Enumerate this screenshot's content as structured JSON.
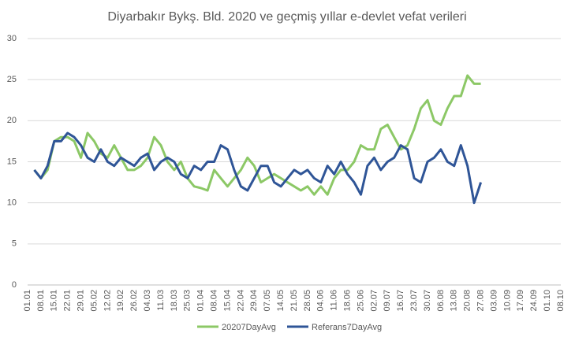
{
  "chart_data": {
    "type": "line",
    "title": "Diyarbakır Bykş. Bld. 2020 ve geçmiş yıllar e-devlet vefat verileri",
    "categories": [
      "01.01",
      null,
      "08.01",
      null,
      "15.01",
      null,
      "22.01",
      null,
      "29.01",
      null,
      "05.02",
      null,
      "12.02",
      null,
      "19.02",
      null,
      "26.02",
      null,
      "04.03",
      null,
      "11.03",
      null,
      "18.03",
      null,
      "25.03",
      null,
      "01.04",
      null,
      "08.04",
      null,
      "15.04",
      null,
      "22.04",
      null,
      "29.04",
      null,
      "07.05",
      null,
      "14.05",
      null,
      "21.05",
      null,
      "28.05",
      null,
      "04.06",
      null,
      "11.06",
      null,
      "18.06",
      null,
      "25.06",
      null,
      "02.07",
      null,
      "09.07",
      null,
      "16.07",
      null,
      "23.07",
      null,
      "30.07",
      null,
      "06.08",
      null,
      "13.08",
      null,
      "20.08",
      null,
      "27.08",
      null,
      "03.09",
      null,
      "10.09",
      null,
      "17.09",
      null,
      "24.09",
      null,
      "01.10",
      null,
      "08.10"
    ],
    "series": [
      {
        "name": "20207DayAvg",
        "color": "#8cc866",
        "values": [
          null,
          14,
          13,
          14,
          17.5,
          18,
          18,
          17.5,
          15.5,
          18.5,
          17.5,
          16,
          15.5,
          17,
          15.5,
          14,
          14,
          14.5,
          15.5,
          18,
          17,
          15,
          14,
          15,
          13,
          12,
          11.8,
          11.5,
          14,
          13,
          12,
          13,
          14,
          15.5,
          14.5,
          12.5,
          13,
          13.5,
          13,
          12.5,
          12,
          11.5,
          12,
          11,
          12,
          11,
          13,
          14,
          14,
          15,
          17,
          16.5,
          16.5,
          19,
          19.5,
          18,
          16.5,
          17,
          19,
          21.5,
          22.5,
          20,
          19.5,
          21.5,
          23,
          23,
          25.5,
          24.5,
          24.5,
          null,
          null,
          null,
          null,
          null,
          null,
          null,
          null,
          null,
          null,
          null,
          null
        ]
      },
      {
        "name": "Referans7DayAvg",
        "color": "#2f5597",
        "values": [
          null,
          14,
          13,
          14.5,
          17.5,
          17.5,
          18.5,
          18,
          17,
          15.5,
          15,
          16.5,
          15,
          14.5,
          15.5,
          15,
          14.5,
          15.5,
          16,
          14,
          15,
          15.5,
          15,
          13.5,
          13,
          14.5,
          14,
          15,
          15,
          17,
          16.5,
          14,
          12,
          11.5,
          13,
          14.5,
          14.5,
          12.5,
          12,
          13,
          14,
          13.5,
          14,
          13,
          12.5,
          14.5,
          13.5,
          15,
          13.5,
          12.5,
          11,
          14.5,
          15.5,
          14,
          15,
          15.5,
          17,
          16.5,
          13,
          12.5,
          15,
          15.5,
          16.5,
          15,
          14.5,
          17,
          14.5,
          10,
          12.5,
          null,
          null,
          null,
          null,
          null,
          null,
          null,
          null,
          null,
          null,
          null,
          null
        ]
      }
    ],
    "ylim": [
      0,
      30
    ],
    "yticks": [
      0,
      5,
      10,
      15,
      20,
      25,
      30
    ],
    "grid": true,
    "legend": "bottom"
  }
}
